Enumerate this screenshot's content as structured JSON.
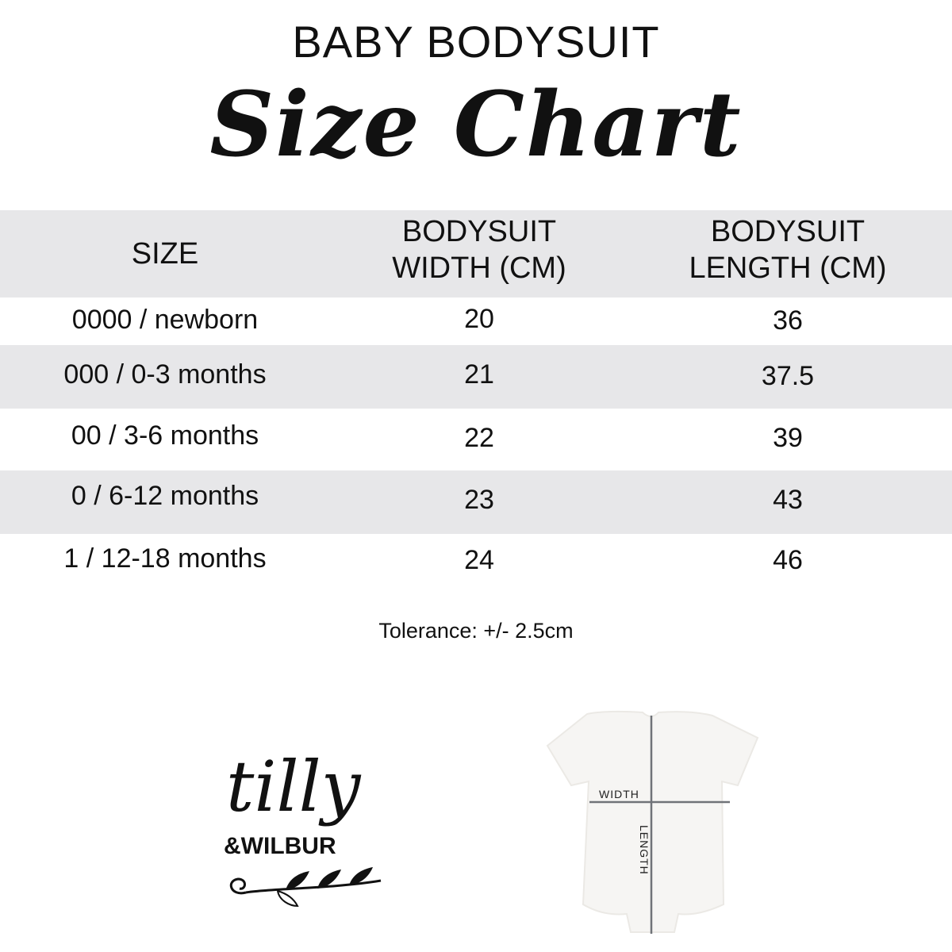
{
  "heading": {
    "line1": "BABY BODYSUIT",
    "line2": "Size Chart"
  },
  "table": {
    "headers": [
      "SIZE",
      "BODYSUIT\nWIDTH (CM)",
      "BODYSUIT\nLENGTH (CM)"
    ],
    "header_lines": [
      [
        "SIZE"
      ],
      [
        "BODYSUIT",
        "WIDTH (CM)"
      ],
      [
        "BODYSUIT",
        "LENGTH (CM)"
      ]
    ],
    "rows": [
      [
        "0000 / newborn",
        "20",
        "36"
      ],
      [
        "000 / 0-3 months",
        "21",
        "37.5"
      ],
      [
        "00 / 3-6 months",
        "22",
        "39"
      ],
      [
        "0 / 6-12 months",
        "23",
        "43"
      ],
      [
        "1 / 12-18 months",
        "24",
        "46"
      ]
    ],
    "stripe_color": "#e7e7e9"
  },
  "tolerance": "Tolerance: +/- 2.5cm",
  "logo": {
    "text_main": "tilly",
    "text_sub": "&WILBUR"
  },
  "diagram": {
    "width_label": "WIDTH",
    "length_label": "LENGTH"
  }
}
